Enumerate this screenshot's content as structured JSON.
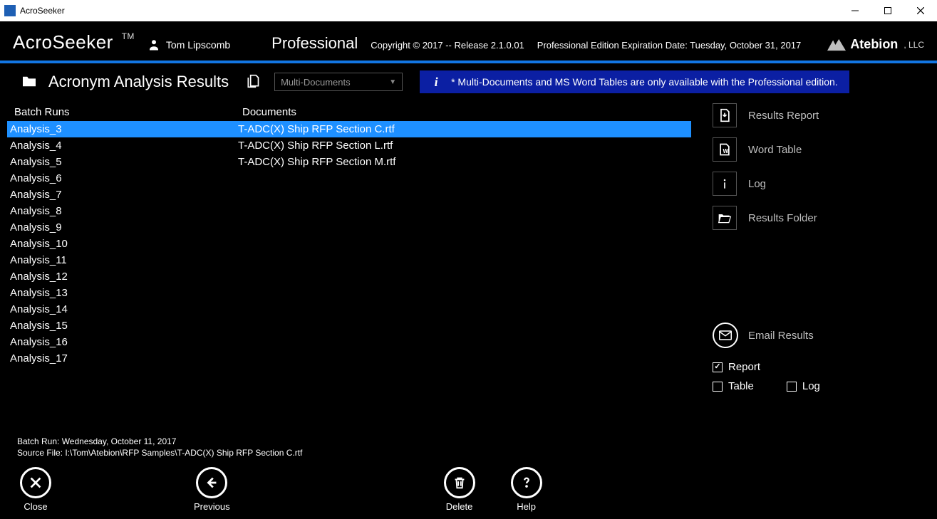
{
  "window": {
    "title": "AcroSeeker"
  },
  "header": {
    "logo": "AcroSeeker",
    "tm": "TM",
    "user": "Tom Lipscomb",
    "edition": "Professional",
    "copyright": "Copyright © 2017 -- Release 2.1.0.01",
    "expiration": "Professional Edition Expiration Date: Tuesday, October 31, 2017",
    "brand": "Atebion",
    "brand_suffix": ", LLC"
  },
  "toolbar": {
    "page_title": "Acronym Analysis Results",
    "dropdown_value": "Multi-Documents",
    "info_text": "* Multi-Documents and MS Word Tables are only available with the Professional edition."
  },
  "panel": {
    "batch_header": "Batch Runs",
    "documents_header": "Documents"
  },
  "batch_runs": [
    "Analysis_3",
    "Analysis_4",
    "Analysis_5",
    "Analysis_6",
    "Analysis_7",
    "Analysis_8",
    "Analysis_9",
    "Analysis_10",
    "Analysis_11",
    "Analysis_12",
    "Analysis_13",
    "Analysis_14",
    "Analysis_15",
    "Analysis_16",
    "Analysis_17"
  ],
  "batch_selected_index": 0,
  "documents": [
    "T-ADC(X) Ship RFP Section C.rtf",
    "T-ADC(X) Ship RFP Section L.rtf",
    "T-ADC(X) Ship RFP Section M.rtf"
  ],
  "document_selected_index": 0,
  "actions": {
    "results_report": "Results Report",
    "word_table": "Word Table",
    "log": "Log",
    "results_folder": "Results Folder"
  },
  "email": {
    "label": "Email Results",
    "report_label": "Report",
    "report_checked": true,
    "table_label": "Table",
    "table_checked": false,
    "log_label": "Log",
    "log_checked": false
  },
  "meta": {
    "batch_line": "Batch Run: Wednesday, October 11, 2017",
    "source_line": "Source File: I:\\Tom\\Atebion\\RFP Samples\\T-ADC(X) Ship RFP Section C.rtf"
  },
  "footer": {
    "close": "Close",
    "previous": "Previous",
    "delete": "Delete",
    "help": "Help"
  },
  "colors": {
    "accent": "#1e90ff",
    "header_rule": "#1276e3",
    "info_bg": "#0b1fa3",
    "muted_text": "#bfbfbf",
    "border": "#555555",
    "background": "#000000"
  }
}
